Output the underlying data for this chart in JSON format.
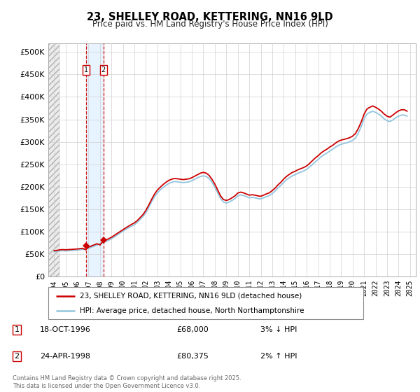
{
  "title": "23, SHELLEY ROAD, KETTERING, NN16 9LD",
  "subtitle": "Price paid vs. HM Land Registry's House Price Index (HPI)",
  "legend_line1": "23, SHELLEY ROAD, KETTERING, NN16 9LD (detached house)",
  "legend_line2": "HPI: Average price, detached house, North Northamptonshire",
  "footer": "Contains HM Land Registry data © Crown copyright and database right 2025.\nThis data is licensed under the Open Government Licence v3.0.",
  "transactions": [
    {
      "label": "1",
      "date": "18-OCT-1996",
      "price": 68000,
      "hpi_rel": "3% ↓ HPI",
      "x": 1996.79
    },
    {
      "label": "2",
      "date": "24-APR-1998",
      "price": 80375,
      "hpi_rel": "2% ↑ HPI",
      "x": 1998.3
    }
  ],
  "xmin": 1993.5,
  "xmax": 2025.5,
  "ymin": 0,
  "ymax": 520000,
  "yticks": [
    0,
    50000,
    100000,
    150000,
    200000,
    250000,
    300000,
    350000,
    400000,
    450000,
    500000
  ],
  "ytick_labels": [
    "£0",
    "£50K",
    "£100K",
    "£150K",
    "£200K",
    "£250K",
    "£300K",
    "£350K",
    "£400K",
    "£450K",
    "£500K"
  ],
  "xtick_years": [
    1994,
    1995,
    1996,
    1997,
    1998,
    1999,
    2000,
    2001,
    2002,
    2003,
    2004,
    2005,
    2006,
    2007,
    2008,
    2009,
    2010,
    2011,
    2012,
    2013,
    2014,
    2015,
    2016,
    2017,
    2018,
    2019,
    2020,
    2021,
    2022,
    2023,
    2024,
    2025
  ],
  "hpi_line_color": "#92c5de",
  "price_line_color": "#cc0000",
  "marker_color": "#cc0000",
  "vline_color": "#cc0000",
  "grid_color": "#d0d0d0",
  "hatch_color": "#d8d8d8",
  "span_color": "#ddeeff",
  "hpi_index_year": 1994.0,
  "hpi_index_value": 55000,
  "hpi_raw": [
    100.0,
    101.5,
    103.1,
    103.8,
    103.1,
    103.8,
    104.6,
    105.4,
    106.2,
    107.7,
    109.2,
    110.8,
    113.8,
    118.5,
    123.1,
    127.7,
    132.3,
    136.9,
    141.5,
    146.2,
    152.3,
    160.0,
    167.7,
    175.4,
    183.1,
    190.8,
    196.9,
    203.1,
    209.2,
    218.5,
    230.8,
    243.1,
    258.5,
    280.0,
    303.1,
    323.1,
    338.5,
    350.8,
    360.0,
    369.2,
    376.9,
    381.5,
    384.6,
    383.1,
    381.5,
    380.0,
    381.5,
    383.1,
    387.7,
    393.8,
    400.0,
    404.6,
    407.7,
    404.6,
    396.9,
    381.5,
    361.5,
    338.5,
    315.4,
    301.5,
    296.9,
    301.5,
    307.7,
    315.4,
    326.2,
    330.8,
    327.7,
    323.1,
    318.5,
    320.0,
    318.5,
    315.4,
    313.8,
    318.5,
    323.1,
    327.7,
    335.4,
    346.2,
    358.5,
    369.2,
    381.5,
    392.3,
    400.0,
    407.7,
    412.3,
    418.5,
    423.1,
    427.7,
    433.8,
    443.1,
    453.8,
    464.6,
    473.8,
    484.6,
    492.3,
    500.0,
    507.7,
    515.4,
    523.1,
    530.8,
    535.4,
    538.5,
    541.5,
    546.2,
    550.8,
    561.5,
    581.5,
    607.7,
    638.5,
    658.5,
    664.6,
    669.2,
    664.6,
    658.5,
    649.2,
    638.5,
    630.8,
    627.7,
    633.8,
    643.1,
    649.2,
    653.8,
    653.8,
    649.2
  ],
  "price_raw": [
    103.8,
    105.4,
    107.7,
    108.5,
    107.7,
    108.5,
    109.2,
    110.0,
    110.8,
    112.3,
    113.8,
    107.7,
    118.5,
    123.1,
    127.7,
    132.3,
    127.0,
    142.3,
    147.7,
    152.3,
    158.5,
    166.2,
    173.8,
    181.5,
    189.2,
    196.9,
    203.8,
    210.8,
    216.9,
    226.2,
    238.5,
    250.8,
    267.7,
    289.2,
    312.3,
    333.8,
    350.0,
    361.5,
    372.3,
    381.5,
    389.2,
    393.8,
    396.9,
    395.4,
    393.8,
    392.3,
    393.8,
    395.4,
    400.0,
    406.2,
    412.3,
    418.5,
    421.5,
    418.5,
    409.2,
    393.8,
    373.8,
    350.0,
    326.2,
    311.5,
    307.7,
    311.5,
    318.5,
    326.2,
    337.7,
    341.5,
    338.5,
    333.8,
    329.2,
    330.8,
    329.2,
    326.2,
    324.6,
    329.2,
    334.6,
    338.5,
    347.7,
    357.7,
    370.8,
    381.5,
    394.6,
    405.4,
    413.8,
    421.5,
    426.2,
    432.3,
    436.9,
    441.5,
    447.7,
    457.7,
    469.2,
    480.0,
    489.2,
    500.0,
    508.5,
    515.4,
    523.8,
    530.8,
    540.0,
    547.7,
    552.3,
    555.4,
    558.5,
    562.3,
    568.5,
    579.2,
    600.0,
    626.2,
    657.7,
    678.5,
    685.4,
    690.8,
    685.4,
    678.5,
    669.2,
    657.7,
    649.2,
    645.4,
    653.8,
    663.1,
    670.8,
    675.4,
    675.4,
    669.2
  ]
}
